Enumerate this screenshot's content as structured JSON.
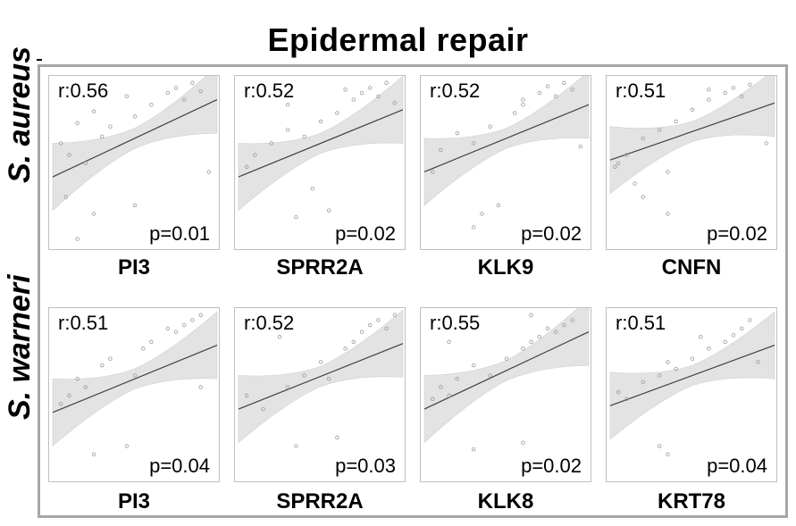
{
  "title": "Epidermal repair",
  "rows": [
    {
      "organism": "S. aureus",
      "panels": [
        {
          "gene": "PI3",
          "r": "r:0.56",
          "p": "p=0.01"
        },
        {
          "gene": "SPRR2A",
          "r": "r:0.52",
          "p": "p=0.02"
        },
        {
          "gene": "KLK9",
          "r": "r:0.52",
          "p": "p=0.02"
        },
        {
          "gene": "CNFN",
          "r": "r:0.51",
          "p": "p=0.02"
        }
      ]
    },
    {
      "organism": "S. warneri",
      "panels": [
        {
          "gene": "PI3",
          "r": "r:0.51",
          "p": "p=0.04"
        },
        {
          "gene": "SPRR2A",
          "r": "r:0.52",
          "p": "p=0.03"
        },
        {
          "gene": "KLK8",
          "r": "r:0.55",
          "p": "p=0.02"
        },
        {
          "gene": "KRT78",
          "r": "r:0.51",
          "p": "p=0.04"
        }
      ]
    }
  ],
  "chart_data": {
    "type": "scatter",
    "title": "Epidermal repair",
    "grid": false,
    "colors": {
      "points": "#9a9a9a",
      "fit_line": "#404040",
      "confidence_band": "#e3e3e3",
      "frame": "#a6a6a6"
    },
    "panels": [
      {
        "row": 0,
        "col": 0,
        "fit": [
          0.42,
          0.88
        ],
        "points": [
          [
            0.05,
            0.62
          ],
          [
            0.1,
            0.55
          ],
          [
            0.15,
            0.74
          ],
          [
            0.2,
            0.5
          ],
          [
            0.25,
            0.81
          ],
          [
            0.3,
            0.66
          ],
          [
            0.35,
            0.72
          ],
          [
            0.45,
            0.9
          ],
          [
            0.5,
            0.78
          ],
          [
            0.6,
            0.85
          ],
          [
            0.7,
            0.92
          ],
          [
            0.75,
            0.95
          ],
          [
            0.8,
            0.88
          ],
          [
            0.85,
            0.98
          ],
          [
            0.9,
            0.93
          ],
          [
            0.08,
            0.3
          ],
          [
            0.25,
            0.2
          ],
          [
            0.5,
            0.25
          ],
          [
            0.95,
            0.45
          ],
          [
            0.15,
            0.05
          ]
        ]
      },
      {
        "row": 0,
        "col": 1,
        "fit": [
          0.42,
          0.82
        ],
        "points": [
          [
            0.05,
            0.48
          ],
          [
            0.1,
            0.55
          ],
          [
            0.2,
            0.62
          ],
          [
            0.3,
            0.7
          ],
          [
            0.4,
            0.66
          ],
          [
            0.45,
            0.35
          ],
          [
            0.5,
            0.75
          ],
          [
            0.55,
            0.22
          ],
          [
            0.6,
            0.8
          ],
          [
            0.7,
            0.88
          ],
          [
            0.75,
            0.92
          ],
          [
            0.8,
            0.95
          ],
          [
            0.85,
            0.9
          ],
          [
            0.9,
            0.98
          ],
          [
            0.35,
            0.18
          ],
          [
            0.3,
            0.85
          ],
          [
            0.65,
            0.94
          ],
          [
            0.95,
            0.86
          ]
        ]
      },
      {
        "row": 0,
        "col": 2,
        "fit": [
          0.45,
          0.85
        ],
        "points": [
          [
            0.05,
            0.45
          ],
          [
            0.1,
            0.58
          ],
          [
            0.2,
            0.68
          ],
          [
            0.3,
            0.62
          ],
          [
            0.35,
            0.2
          ],
          [
            0.4,
            0.72
          ],
          [
            0.45,
            0.25
          ],
          [
            0.55,
            0.8
          ],
          [
            0.6,
            0.88
          ],
          [
            0.7,
            0.92
          ],
          [
            0.75,
            0.96
          ],
          [
            0.8,
            0.9
          ],
          [
            0.85,
            0.98
          ],
          [
            0.9,
            0.94
          ],
          [
            0.95,
            0.6
          ],
          [
            0.3,
            0.12
          ],
          [
            0.6,
            0.85
          ]
        ]
      },
      {
        "row": 0,
        "col": 3,
        "fit": [
          0.52,
          0.86
        ],
        "points": [
          [
            0.03,
            0.48
          ],
          [
            0.05,
            0.5
          ],
          [
            0.1,
            0.55
          ],
          [
            0.15,
            0.38
          ],
          [
            0.2,
            0.65
          ],
          [
            0.2,
            0.3
          ],
          [
            0.3,
            0.7
          ],
          [
            0.35,
            0.2
          ],
          [
            0.4,
            0.75
          ],
          [
            0.5,
            0.82
          ],
          [
            0.6,
            0.88
          ],
          [
            0.7,
            0.92
          ],
          [
            0.75,
            0.95
          ],
          [
            0.8,
            0.9
          ],
          [
            0.85,
            0.97
          ],
          [
            0.95,
            0.62
          ],
          [
            0.35,
            0.45
          ],
          [
            0.6,
            0.94
          ]
        ]
      },
      {
        "row": 1,
        "col": 0,
        "fit": [
          0.4,
          0.8
        ],
        "points": [
          [
            0.05,
            0.45
          ],
          [
            0.1,
            0.5
          ],
          [
            0.2,
            0.55
          ],
          [
            0.3,
            0.68
          ],
          [
            0.35,
            0.72
          ],
          [
            0.5,
            0.62
          ],
          [
            0.55,
            0.78
          ],
          [
            0.6,
            0.82
          ],
          [
            0.7,
            0.9
          ],
          [
            0.75,
            0.88
          ],
          [
            0.8,
            0.92
          ],
          [
            0.85,
            0.95
          ],
          [
            0.9,
            0.98
          ],
          [
            0.25,
            0.15
          ],
          [
            0.45,
            0.2
          ],
          [
            0.9,
            0.55
          ],
          [
            0.15,
            0.6
          ]
        ]
      },
      {
        "row": 1,
        "col": 1,
        "fit": [
          0.42,
          0.81
        ],
        "points": [
          [
            0.05,
            0.5
          ],
          [
            0.15,
            0.42
          ],
          [
            0.3,
            0.55
          ],
          [
            0.35,
            0.2
          ],
          [
            0.4,
            0.62
          ],
          [
            0.5,
            0.7
          ],
          [
            0.6,
            0.25
          ],
          [
            0.65,
            0.78
          ],
          [
            0.7,
            0.82
          ],
          [
            0.75,
            0.88
          ],
          [
            0.8,
            0.92
          ],
          [
            0.85,
            0.95
          ],
          [
            0.9,
            0.9
          ],
          [
            0.25,
            0.85
          ],
          [
            0.55,
            0.6
          ],
          [
            0.95,
            0.98
          ]
        ]
      },
      {
        "row": 1,
        "col": 2,
        "fit": [
          0.42,
          0.88
        ],
        "points": [
          [
            0.05,
            0.48
          ],
          [
            0.1,
            0.55
          ],
          [
            0.15,
            0.5
          ],
          [
            0.2,
            0.6
          ],
          [
            0.3,
            0.68
          ],
          [
            0.4,
            0.62
          ],
          [
            0.5,
            0.72
          ],
          [
            0.6,
            0.78
          ],
          [
            0.65,
            0.82
          ],
          [
            0.7,
            0.85
          ],
          [
            0.75,
            0.9
          ],
          [
            0.8,
            0.88
          ],
          [
            0.85,
            0.92
          ],
          [
            0.9,
            0.95
          ],
          [
            0.3,
            0.18
          ],
          [
            0.6,
            0.22
          ],
          [
            0.15,
            0.82
          ],
          [
            0.65,
            0.98
          ]
        ]
      },
      {
        "row": 1,
        "col": 3,
        "fit": [
          0.44,
          0.8
        ],
        "points": [
          [
            0.05,
            0.52
          ],
          [
            0.1,
            0.48
          ],
          [
            0.2,
            0.58
          ],
          [
            0.3,
            0.62
          ],
          [
            0.35,
            0.7
          ],
          [
            0.4,
            0.66
          ],
          [
            0.5,
            0.72
          ],
          [
            0.6,
            0.78
          ],
          [
            0.7,
            0.82
          ],
          [
            0.75,
            0.86
          ],
          [
            0.8,
            0.9
          ],
          [
            0.85,
            0.95
          ],
          [
            0.3,
            0.2
          ],
          [
            0.35,
            0.15
          ],
          [
            0.55,
            0.85
          ],
          [
            0.9,
            0.7
          ]
        ]
      }
    ]
  }
}
